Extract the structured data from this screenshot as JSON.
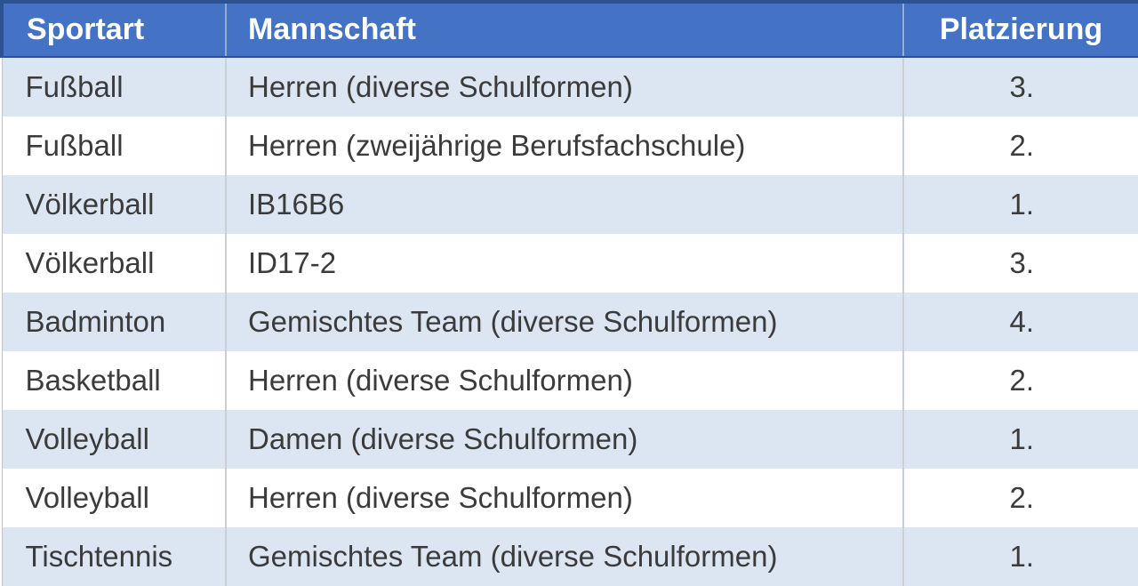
{
  "chart_data": {
    "type": "table",
    "columns": [
      "Sportart",
      "Mannschaft",
      "Platzierung"
    ],
    "rows": [
      [
        "Fußball",
        "Herren (diverse Schulformen)",
        "3."
      ],
      [
        "Fußball",
        "Herren (zweijährige Berufsfachschule)",
        "2."
      ],
      [
        "Völkerball",
        "IB16B6",
        "1."
      ],
      [
        "Völkerball",
        "ID17-2",
        "3."
      ],
      [
        "Badminton",
        "Gemischtes Team (diverse Schulformen)",
        "4."
      ],
      [
        "Basketball",
        "Herren (diverse Schulformen)",
        "2."
      ],
      [
        "Volleyball",
        "Damen (diverse Schulformen)",
        "1."
      ],
      [
        "Volleyball",
        "Herren (diverse Schulformen)",
        "2."
      ],
      [
        "Tischtennis",
        "Gemischtes Team (diverse Schulformen)",
        "1."
      ]
    ],
    "layout_hints": {
      "header_row": true,
      "zebra_striping": true,
      "first_stripe": "light-blue"
    },
    "colors": {
      "header_bg": "#4472C4",
      "header_text": "#FFFFFF",
      "header_border": "#2B5293",
      "row_stripe_bg": "#DCE6F2",
      "row_plain_bg": "#FFFFFF",
      "body_text": "#3B3B3B",
      "grid_border": "#C4C4C4",
      "bottom_border": "#44546A"
    }
  }
}
